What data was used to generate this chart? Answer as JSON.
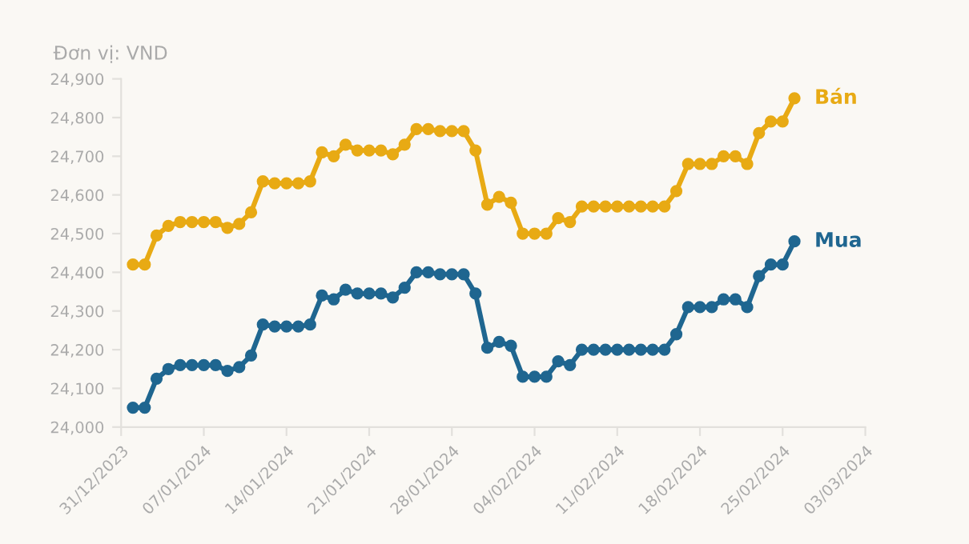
{
  "chart_data": {
    "type": "line",
    "ylabel": "Đơn vị: VND",
    "x": [
      "2024-01-01",
      "2024-01-02",
      "2024-01-03",
      "2024-01-04",
      "2024-01-05",
      "2024-01-06",
      "2024-01-07",
      "2024-01-08",
      "2024-01-09",
      "2024-01-10",
      "2024-01-11",
      "2024-01-12",
      "2024-01-13",
      "2024-01-14",
      "2024-01-15",
      "2024-01-16",
      "2024-01-17",
      "2024-01-18",
      "2024-01-19",
      "2024-01-20",
      "2024-01-21",
      "2024-01-22",
      "2024-01-23",
      "2024-01-24",
      "2024-01-25",
      "2024-01-26",
      "2024-01-27",
      "2024-01-28",
      "2024-01-29",
      "2024-01-30",
      "2024-01-31",
      "2024-02-01",
      "2024-02-02",
      "2024-02-03",
      "2024-02-04",
      "2024-02-05",
      "2024-02-06",
      "2024-02-07",
      "2024-02-08",
      "2024-02-09",
      "2024-02-10",
      "2024-02-11",
      "2024-02-12",
      "2024-02-13",
      "2024-02-14",
      "2024-02-15",
      "2024-02-16",
      "2024-02-17",
      "2024-02-18",
      "2024-02-19",
      "2024-02-20",
      "2024-02-21",
      "2024-02-22",
      "2024-02-23",
      "2024-02-24",
      "2024-02-25",
      "2024-02-26"
    ],
    "series": [
      {
        "name": "Bán",
        "color": "#e8aa14",
        "values": [
          24420,
          24420,
          24495,
          24520,
          24530,
          24530,
          24530,
          24530,
          24515,
          24525,
          24555,
          24635,
          24630,
          24630,
          24630,
          24635,
          24710,
          24700,
          24730,
          24715,
          24715,
          24715,
          24705,
          24730,
          24770,
          24770,
          24765,
          24765,
          24765,
          24715,
          24575,
          24595,
          24580,
          24500,
          24500,
          24500,
          24540,
          24530,
          24570,
          24570,
          24570,
          24570,
          24570,
          24570,
          24570,
          24570,
          24610,
          24680,
          24680,
          24680,
          24700,
          24700,
          24680,
          24760,
          24790,
          24790,
          24850
        ]
      },
      {
        "name": "Mua",
        "color": "#1f6690",
        "values": [
          24050,
          24050,
          24125,
          24150,
          24160,
          24160,
          24160,
          24160,
          24145,
          24155,
          24185,
          24265,
          24260,
          24260,
          24260,
          24265,
          24340,
          24330,
          24355,
          24345,
          24345,
          24345,
          24335,
          24360,
          24400,
          24400,
          24395,
          24395,
          24395,
          24345,
          24205,
          24220,
          24210,
          24130,
          24130,
          24130,
          24170,
          24160,
          24200,
          24200,
          24200,
          24200,
          24200,
          24200,
          24200,
          24200,
          24240,
          24310,
          24310,
          24310,
          24330,
          24330,
          24310,
          24390,
          24420,
          24420,
          24480
        ]
      }
    ],
    "xlim": [
      "2023-12-31",
      "2024-03-03"
    ],
    "xticks": [
      {
        "value": "2023-12-31",
        "label": "31/12/2023"
      },
      {
        "value": "2024-01-07",
        "label": "07/01/2024"
      },
      {
        "value": "2024-01-14",
        "label": "14/01/2024"
      },
      {
        "value": "2024-01-21",
        "label": "21/01/2024"
      },
      {
        "value": "2024-01-28",
        "label": "28/01/2024"
      },
      {
        "value": "2024-02-04",
        "label": "04/02/2024"
      },
      {
        "value": "2024-02-11",
        "label": "11/02/2024"
      },
      {
        "value": "2024-02-18",
        "label": "18/02/2024"
      },
      {
        "value": "2024-02-25",
        "label": "25/02/2024"
      },
      {
        "value": "2024-03-03",
        "label": "03/03/2024"
      }
    ],
    "ylim": [
      24000,
      24900
    ],
    "yticks": [
      {
        "value": 24000,
        "label": "24,000"
      },
      {
        "value": 24100,
        "label": "24,100"
      },
      {
        "value": 24200,
        "label": "24,200"
      },
      {
        "value": 24300,
        "label": "24,300"
      },
      {
        "value": 24400,
        "label": "24,400"
      },
      {
        "value": 24500,
        "label": "24,500"
      },
      {
        "value": 24600,
        "label": "24,600"
      },
      {
        "value": 24700,
        "label": "24,700"
      },
      {
        "value": 24800,
        "label": "24,800"
      },
      {
        "value": 24900,
        "label": "24,900"
      }
    ],
    "marker": "circle",
    "line_style": "solid",
    "grid": false,
    "legend": false
  }
}
